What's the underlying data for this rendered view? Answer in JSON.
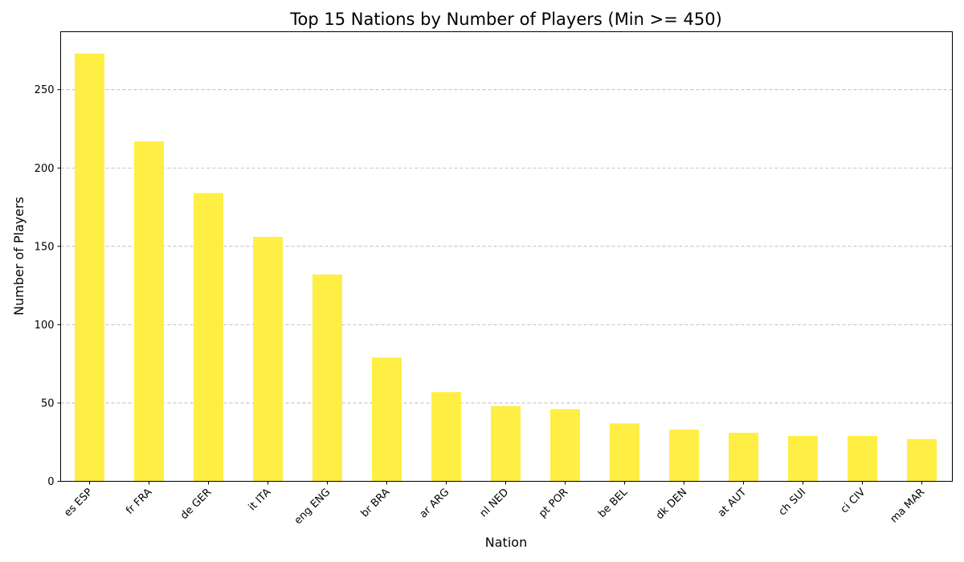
{
  "chart_data": {
    "type": "bar",
    "title": "Top 15 Nations by Number of Players (Min >= 450)",
    "xlabel": "Nation",
    "ylabel": "Number of Players",
    "categories": [
      "es ESP",
      "fr FRA",
      "de GER",
      "it ITA",
      "eng ENG",
      "br BRA",
      "ar ARG",
      "nl NED",
      "pt POR",
      "be BEL",
      "dk DEN",
      "at AUT",
      "ch SUI",
      "ci CIV",
      "ma MAR"
    ],
    "values": [
      273,
      217,
      184,
      156,
      132,
      79,
      57,
      48,
      46,
      37,
      33,
      31,
      29,
      29,
      27
    ],
    "ylim": [
      0,
      287
    ],
    "yticks": [
      0,
      50,
      100,
      150,
      200,
      250
    ],
    "grid": "y-dashed",
    "bar_color": "#ffee44"
  }
}
